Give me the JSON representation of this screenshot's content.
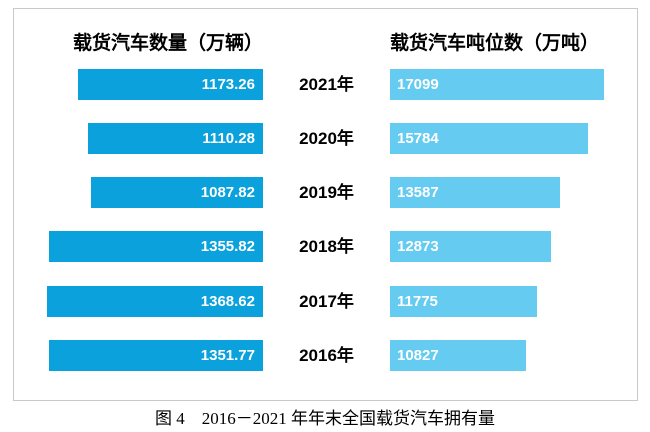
{
  "page": {
    "caption": "图 4　2016－2021 年年末全国载货汽车拥有量"
  },
  "chart_data": {
    "type": "bar",
    "variant": "tornado-butterfly, years centered between two horizontal bar series",
    "title": "2016－2021 年年末全国载货汽车拥有量",
    "left_axis_title": "载货汽车数量（万辆）",
    "right_axis_title": "载货汽车吨位数（万吨）",
    "categories": [
      "2021年",
      "2020年",
      "2019年",
      "2018年",
      "2017年",
      "2016年"
    ],
    "series": [
      {
        "name": "载货汽车数量（万辆）",
        "values": [
          1173.26,
          1110.28,
          1087.82,
          1355.82,
          1368.62,
          1351.77
        ]
      },
      {
        "name": "载货汽车吨位数（万吨）",
        "values": [
          17099,
          15784,
          13587,
          12873,
          11775,
          10827
        ]
      }
    ],
    "colors": {
      "count_bar": "#0aa1dc",
      "tonnage_bar": "#66cbf1",
      "value_label": "#ffffff",
      "text": "#000000"
    },
    "layout_hints": {
      "left_axis_range": [
        0,
        1577
      ],
      "right_axis_range": [
        0,
        19750
      ],
      "grid": "off",
      "legend": "none",
      "data_labels": "inside-bar"
    },
    "rows": [
      {
        "year": "2021年",
        "count_label": "1173.26",
        "tonnage_label": "17099",
        "count_value": 1173.26,
        "tonnage_value": 17099
      },
      {
        "year": "2020年",
        "count_label": "1110.28",
        "tonnage_label": "15784",
        "count_value": 1110.28,
        "tonnage_value": 15784
      },
      {
        "year": "2019年",
        "count_label": "1087.82",
        "tonnage_label": "13587",
        "count_value": 1087.82,
        "tonnage_value": 13587
      },
      {
        "year": "2018年",
        "count_label": "1355.82",
        "tonnage_label": "12873",
        "count_value": 1355.82,
        "tonnage_value": 12873
      },
      {
        "year": "2017年",
        "count_label": "1368.62",
        "tonnage_label": "11775",
        "count_value": 1368.62,
        "tonnage_value": 11775
      },
      {
        "year": "2016年",
        "count_label": "1351.77",
        "tonnage_label": "10827",
        "count_value": 1351.77,
        "tonnage_value": 10827
      }
    ]
  }
}
